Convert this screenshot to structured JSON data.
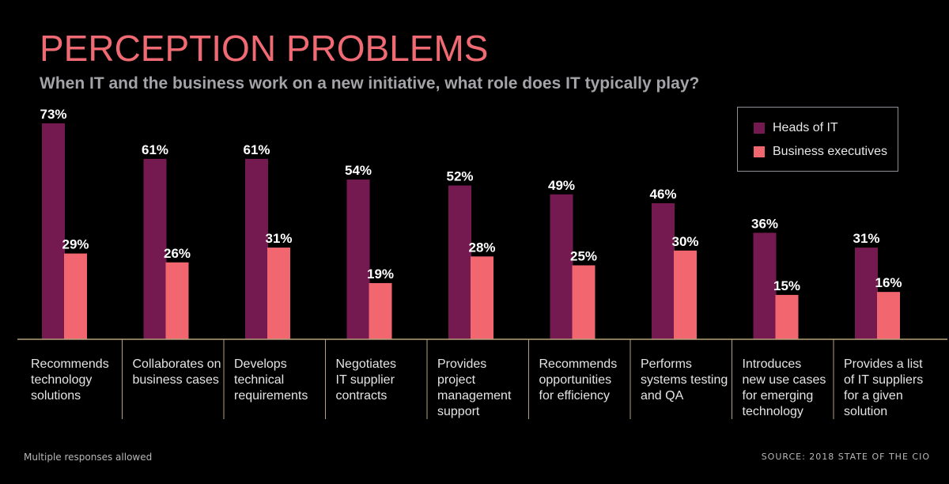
{
  "colors": {
    "heads_of_it": "#751a50",
    "business_executives": "#f2676f",
    "title": "#f06a73",
    "axis": "#b5a07a"
  },
  "header": {
    "title": "PERCEPTION PROBLEMS",
    "subtitle": "When IT and the business work on a new initiative, what role does IT typically play?"
  },
  "footer": {
    "note": "Multiple responses allowed",
    "source": "SOURCE: 2018 STATE OF THE CIO"
  },
  "chart_data": {
    "type": "bar",
    "title": "PERCEPTION PROBLEMS",
    "subtitle": "When IT and the business work on a new initiative, what role does IT typically play?",
    "xlabel": "",
    "ylabel": "",
    "ylim": [
      0,
      73
    ],
    "grid": false,
    "legend_position": "top-right",
    "categories": [
      [
        "Recommends",
        "technology",
        "solutions"
      ],
      [
        "Collaborates on",
        "business cases"
      ],
      [
        "Develops",
        "technical",
        "requirements"
      ],
      [
        "Negotiates",
        "IT supplier",
        "contracts"
      ],
      [
        "Provides",
        "project",
        "management",
        "support"
      ],
      [
        "Recommends",
        "opportunities",
        "for efficiency"
      ],
      [
        "Performs",
        "systems testing",
        "and QA"
      ],
      [
        "Introduces",
        "new use cases",
        "for emerging",
        "technology"
      ],
      [
        "Provides a list",
        "of IT suppliers",
        "for a given",
        "solution"
      ]
    ],
    "series": [
      {
        "name": "Heads of IT",
        "values": [
          73,
          61,
          61,
          54,
          52,
          49,
          46,
          36,
          31
        ],
        "labels": [
          "73%",
          "61%",
          "61%",
          "54%",
          "52%",
          "49%",
          "46%",
          "36%",
          "31%"
        ]
      },
      {
        "name": "Business executives",
        "values": [
          29,
          26,
          31,
          19,
          28,
          25,
          30,
          15,
          16
        ],
        "labels": [
          "29%",
          "26%",
          "31%",
          "19%",
          "28%",
          "25%",
          "30%",
          "15%",
          "16%"
        ]
      }
    ]
  }
}
